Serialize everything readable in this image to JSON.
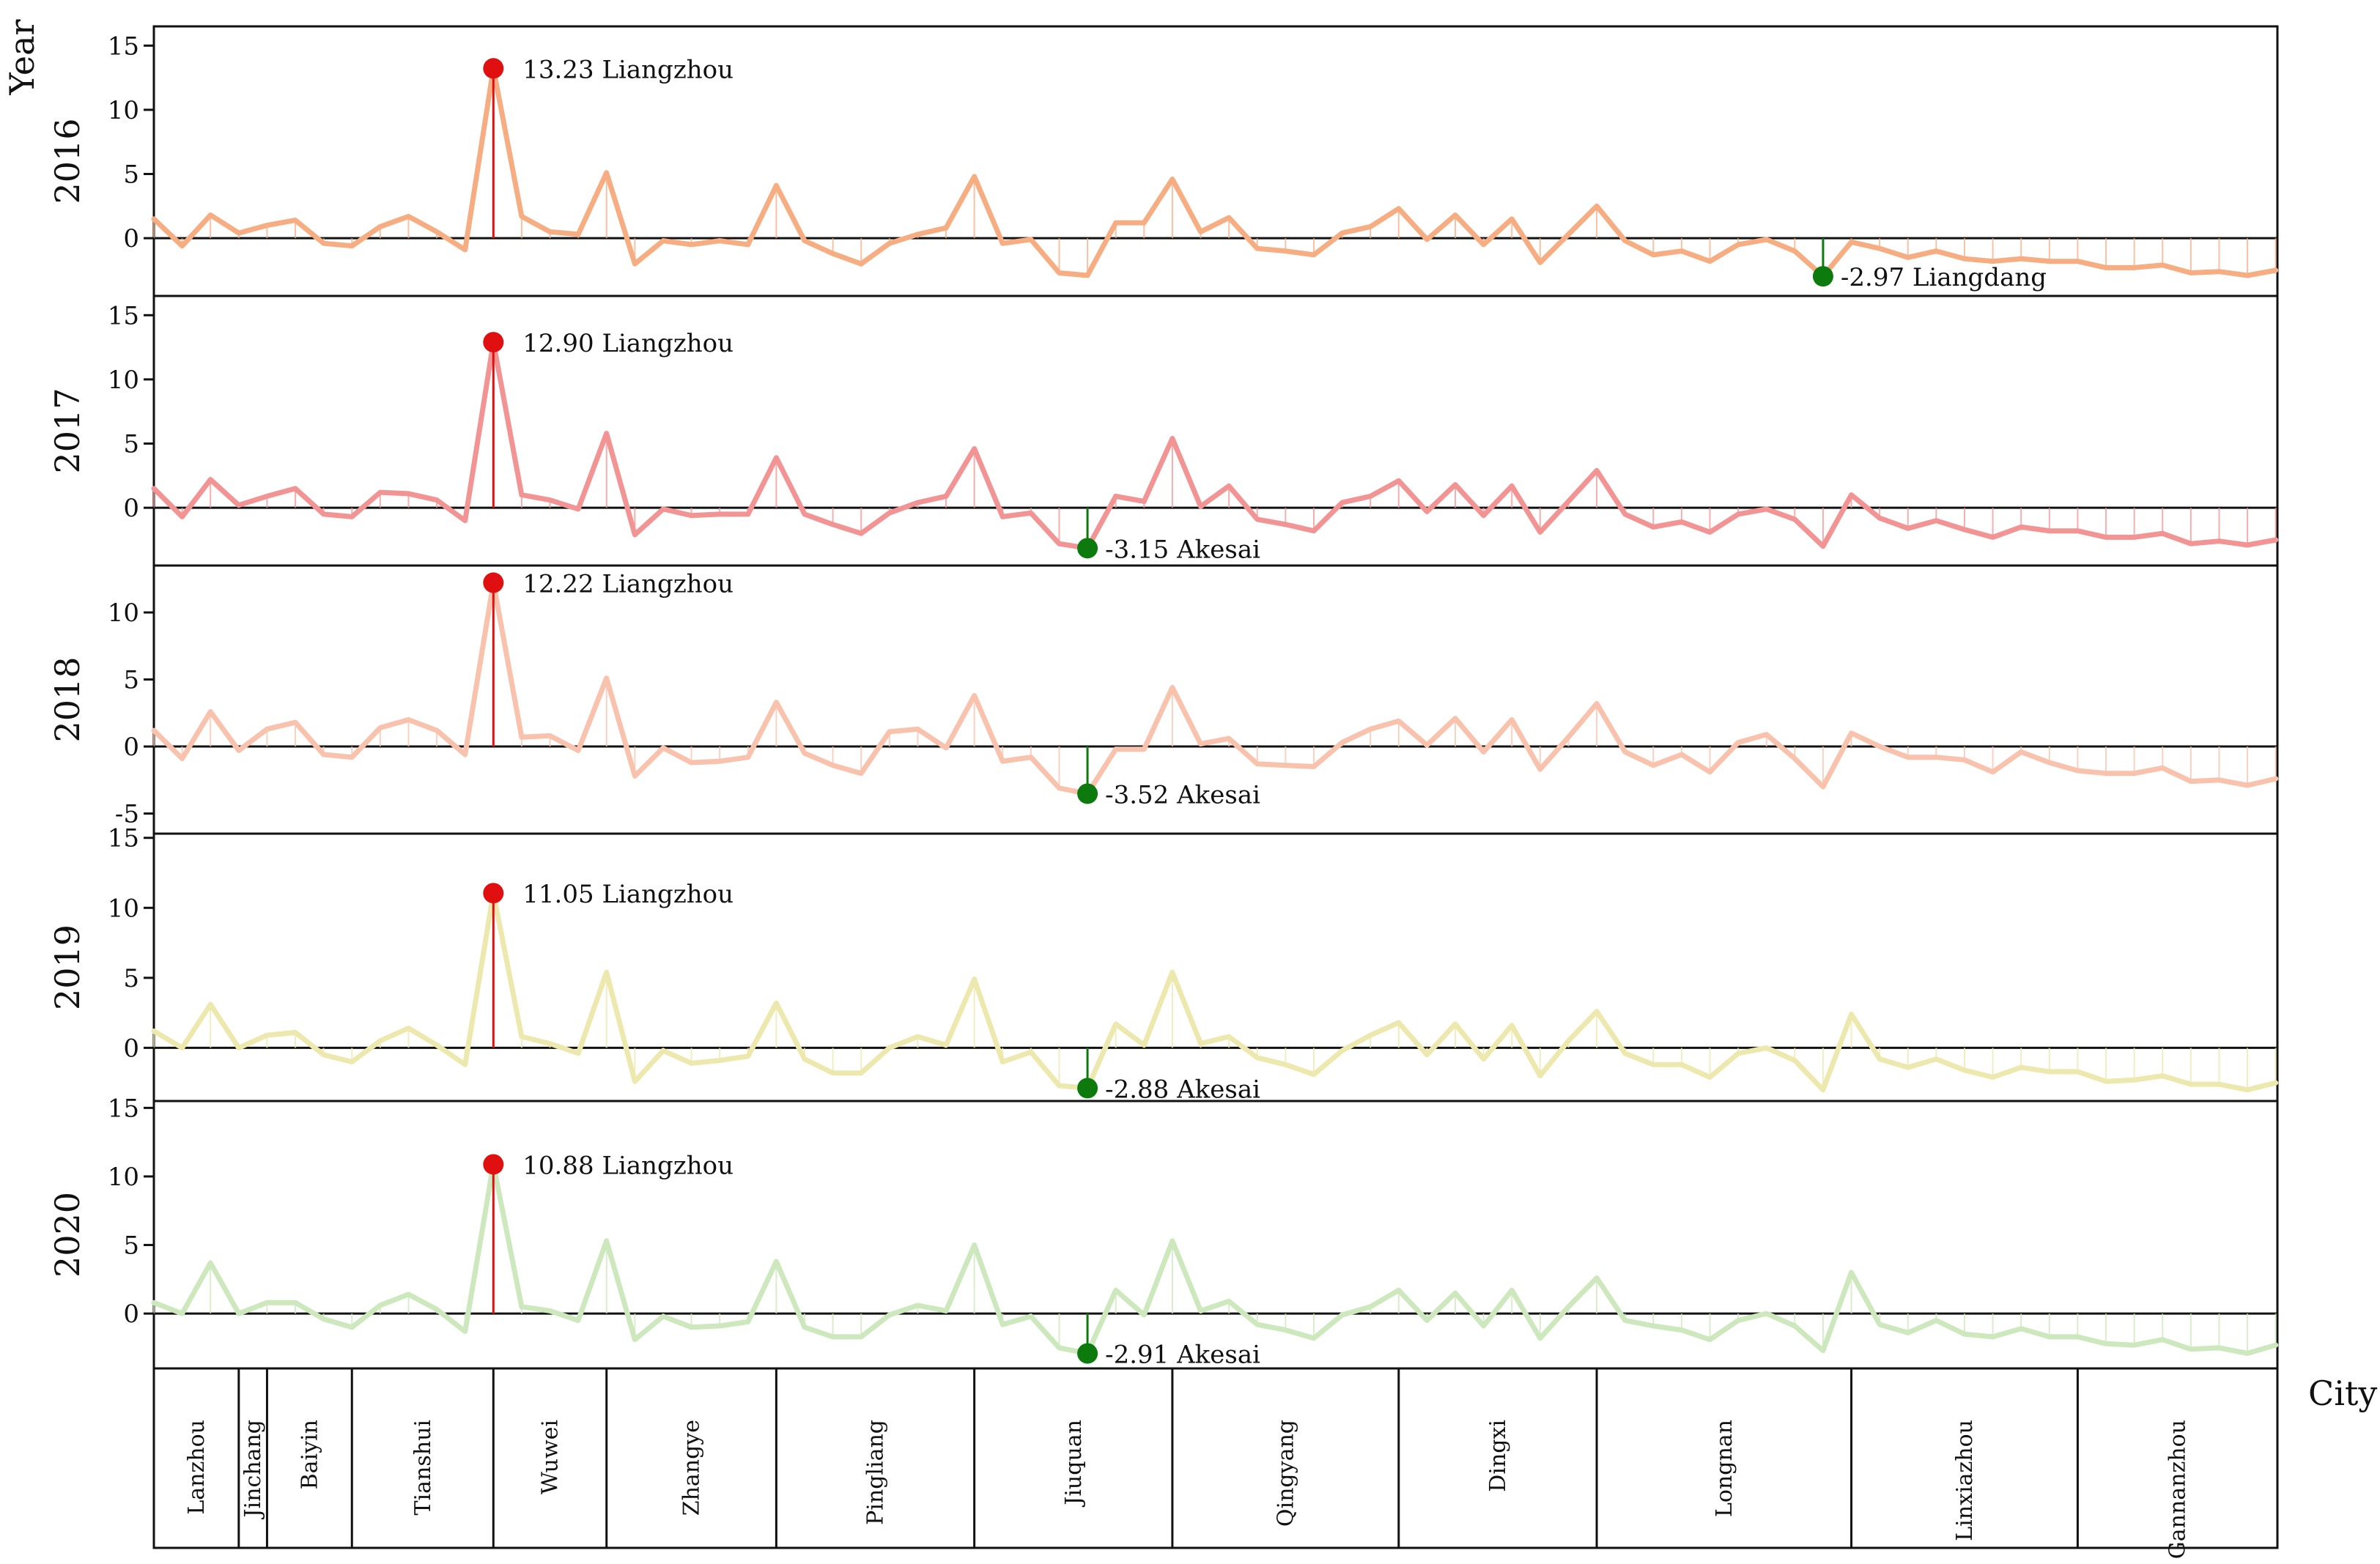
{
  "chart_data": {
    "type": "line",
    "title": "",
    "xlabel": "City",
    "ylabel": "Year",
    "x": [
      1,
      2,
      3,
      4,
      5,
      6,
      7,
      8,
      9,
      10,
      11,
      12,
      13,
      14,
      15,
      16,
      17,
      18,
      19,
      20,
      21,
      22,
      23,
      24,
      25,
      26,
      27,
      28,
      29,
      30,
      31,
      32,
      33,
      34,
      35,
      36,
      37,
      38,
      39,
      40,
      41,
      42,
      43,
      44,
      45,
      46,
      47,
      48,
      49,
      50,
      51,
      52,
      53,
      54,
      55,
      56,
      57,
      58,
      59,
      60,
      61,
      62,
      63,
      64,
      65,
      66,
      67,
      68,
      69,
      70,
      71,
      72,
      73,
      74,
      75,
      76
    ],
    "city_groups": [
      {
        "name": "Lanzhou",
        "start": 1,
        "end": 4
      },
      {
        "name": "Jinchang",
        "start": 4,
        "end": 5
      },
      {
        "name": "Baiyin",
        "start": 5,
        "end": 8
      },
      {
        "name": "Tianshui",
        "start": 8,
        "end": 13
      },
      {
        "name": "Wuwei",
        "start": 13,
        "end": 17
      },
      {
        "name": "Zhangye",
        "start": 17,
        "end": 23
      },
      {
        "name": "Pingliang",
        "start": 23,
        "end": 30
      },
      {
        "name": "Jiuquan",
        "start": 30,
        "end": 37
      },
      {
        "name": "Qingyang",
        "start": 37,
        "end": 45
      },
      {
        "name": "Dingxi",
        "start": 45,
        "end": 52
      },
      {
        "name": "Longnan",
        "start": 52,
        "end": 61
      },
      {
        "name": "Linxiazhou",
        "start": 61,
        "end": 69
      },
      {
        "name": "Gannanzhou",
        "start": 69,
        "end": 77
      }
    ],
    "series": [
      {
        "name": "2016",
        "color": "#f7ad82",
        "ylim": [
          -4.5,
          16.5
        ],
        "yticks": [
          0,
          5,
          10,
          15
        ],
        "values": [
          1.5,
          -0.6,
          1.8,
          0.4,
          1.0,
          1.4,
          -0.4,
          -0.6,
          0.9,
          1.7,
          0.5,
          -0.9,
          13.23,
          1.7,
          0.5,
          0.3,
          5.1,
          -2.0,
          -0.2,
          -0.5,
          -0.2,
          -0.5,
          4.1,
          -0.2,
          -1.2,
          -2.0,
          -0.4,
          0.3,
          0.8,
          4.8,
          -0.4,
          -0.1,
          -2.7,
          -2.9,
          1.2,
          1.2,
          4.6,
          0.5,
          1.6,
          -0.8,
          -1.0,
          -1.3,
          0.4,
          0.9,
          2.3,
          -0.1,
          1.8,
          -0.5,
          1.5,
          -1.9,
          0.3,
          2.5,
          -0.2,
          -1.3,
          -1.0,
          -1.8,
          -0.5,
          -0.1,
          -1.0,
          -2.97,
          -0.3,
          -0.8,
          -1.5,
          -1.0,
          -1.6,
          -1.8,
          -1.6,
          -1.8,
          -1.8,
          -2.3,
          -2.3,
          -2.1,
          -2.7,
          -2.6,
          -2.9,
          -2.5
        ],
        "annotations": {
          "max": {
            "label": "13.23  Liangzhou",
            "value": 13.23,
            "x": 13
          },
          "min": {
            "label": "-2.97  Liangdang",
            "value": -2.97,
            "x": 60
          }
        }
      },
      {
        "name": "2017",
        "color": "#f29494",
        "ylim": [
          -4.5,
          16.5
        ],
        "yticks": [
          0,
          5,
          10,
          15
        ],
        "values": [
          1.5,
          -0.7,
          2.2,
          0.2,
          0.9,
          1.5,
          -0.5,
          -0.7,
          1.2,
          1.1,
          0.6,
          -1.0,
          12.9,
          1.0,
          0.6,
          -0.1,
          5.8,
          -2.1,
          -0.1,
          -0.6,
          -0.5,
          -0.5,
          3.9,
          -0.5,
          -1.3,
          -2.0,
          -0.4,
          0.4,
          0.9,
          4.6,
          -0.7,
          -0.4,
          -2.8,
          -3.15,
          0.9,
          0.5,
          5.4,
          0.1,
          1.7,
          -0.9,
          -1.3,
          -1.8,
          0.4,
          0.9,
          2.1,
          -0.3,
          1.8,
          -0.6,
          1.7,
          -1.9,
          0.5,
          2.9,
          -0.5,
          -1.5,
          -1.1,
          -1.9,
          -0.5,
          -0.1,
          -0.9,
          -3.0,
          1.0,
          -0.8,
          -1.6,
          -1.0,
          -1.7,
          -2.3,
          -1.5,
          -1.8,
          -1.8,
          -2.3,
          -2.3,
          -2.0,
          -2.8,
          -2.6,
          -2.9,
          -2.5
        ],
        "annotations": {
          "max": {
            "label": "12.90  Liangzhou",
            "value": 12.9,
            "x": 13
          },
          "min": {
            "label": "-3.15  Akesai",
            "value": -3.15,
            "x": 34
          }
        }
      },
      {
        "name": "2018",
        "color": "#f8c2ac",
        "ylim": [
          -6.5,
          13.5
        ],
        "yticks": [
          -5,
          0,
          5,
          10
        ],
        "values": [
          1.2,
          -0.9,
          2.6,
          -0.3,
          1.3,
          1.8,
          -0.6,
          -0.8,
          1.4,
          2.0,
          1.2,
          -0.6,
          12.22,
          0.7,
          0.8,
          -0.3,
          5.1,
          -2.2,
          -0.1,
          -1.2,
          -1.1,
          -0.8,
          3.3,
          -0.5,
          -1.4,
          -2.0,
          1.1,
          1.3,
          -0.1,
          3.8,
          -1.1,
          -0.8,
          -3.1,
          -3.52,
          -0.2,
          -0.2,
          4.4,
          0.2,
          0.6,
          -1.3,
          -1.4,
          -1.5,
          0.3,
          1.3,
          1.9,
          0.1,
          2.1,
          -0.4,
          2.0,
          -1.7,
          0.7,
          3.2,
          -0.4,
          -1.4,
          -0.6,
          -1.9,
          0.3,
          0.9,
          -0.9,
          -3.0,
          1.0,
          0.0,
          -0.8,
          -0.8,
          -1.0,
          -1.9,
          -0.4,
          -1.2,
          -1.8,
          -2.0,
          -2.0,
          -1.6,
          -2.6,
          -2.5,
          -2.9,
          -2.4
        ],
        "annotations": {
          "max": {
            "label": "12.22  Liangzhou",
            "value": 12.22,
            "x": 13
          },
          "min": {
            "label": "-3.52  Akesai",
            "value": -3.52,
            "x": 34
          }
        }
      },
      {
        "name": "2019",
        "color": "#ede8ad",
        "ylim": [
          -3.8,
          15.3
        ],
        "yticks": [
          0,
          5,
          10,
          15
        ],
        "values": [
          1.2,
          0.0,
          3.1,
          0.0,
          0.9,
          1.1,
          -0.5,
          -1.0,
          0.5,
          1.4,
          0.2,
          -1.2,
          11.05,
          0.8,
          0.3,
          -0.4,
          5.4,
          -2.4,
          -0.2,
          -1.1,
          -0.9,
          -0.6,
          3.2,
          -0.8,
          -1.8,
          -1.8,
          0.0,
          0.8,
          0.2,
          4.9,
          -1.0,
          -0.3,
          -2.7,
          -2.88,
          1.7,
          0.2,
          5.4,
          0.3,
          0.8,
          -0.7,
          -1.2,
          -1.9,
          -0.2,
          0.9,
          1.8,
          -0.5,
          1.7,
          -0.8,
          1.6,
          -2.0,
          0.5,
          2.6,
          -0.4,
          -1.2,
          -1.2,
          -2.1,
          -0.4,
          0.0,
          -0.9,
          -3.0,
          2.4,
          -0.8,
          -1.4,
          -0.8,
          -1.6,
          -2.1,
          -1.4,
          -1.7,
          -1.7,
          -2.4,
          -2.3,
          -2.0,
          -2.6,
          -2.6,
          -3.0,
          -2.5
        ],
        "annotations": {
          "max": {
            "label": "11.05  Liangzhou",
            "value": 11.05,
            "x": 13
          },
          "min": {
            "label": "-2.88  Akesai",
            "value": -2.88,
            "x": 34
          }
        }
      },
      {
        "name": "2020",
        "color": "#cde8bc",
        "ylim": [
          -4.0,
          15.5
        ],
        "yticks": [
          0,
          5,
          10,
          15
        ],
        "values": [
          0.8,
          0.0,
          3.7,
          0.0,
          0.8,
          0.8,
          -0.4,
          -1.0,
          0.6,
          1.4,
          0.3,
          -1.3,
          10.88,
          0.5,
          0.2,
          -0.5,
          5.3,
          -1.9,
          -0.2,
          -1.0,
          -0.9,
          -0.6,
          3.8,
          -1.0,
          -1.7,
          -1.7,
          -0.1,
          0.6,
          0.2,
          5.0,
          -0.8,
          -0.2,
          -2.5,
          -2.91,
          1.7,
          -0.1,
          5.3,
          0.2,
          0.9,
          -0.8,
          -1.2,
          -1.8,
          -0.1,
          0.5,
          1.7,
          -0.5,
          1.5,
          -0.9,
          1.7,
          -1.8,
          0.5,
          2.6,
          -0.5,
          -0.9,
          -1.2,
          -1.9,
          -0.5,
          0.0,
          -0.9,
          -2.7,
          3.0,
          -0.8,
          -1.4,
          -0.5,
          -1.5,
          -1.7,
          -1.1,
          -1.7,
          -1.7,
          -2.2,
          -2.3,
          -1.9,
          -2.6,
          -2.5,
          -2.9,
          -2.3
        ],
        "annotations": {
          "max": {
            "label": "10.88  Liangzhou",
            "value": 10.88,
            "x": 13
          },
          "min": {
            "label": "-2.91  Akesai",
            "value": -2.91,
            "x": 34
          }
        }
      }
    ],
    "marker_colors": {
      "max": "#e01010",
      "min": "#0c7a0c",
      "max_stem": "#e01010",
      "min_stem": "#0c7a0c"
    }
  }
}
